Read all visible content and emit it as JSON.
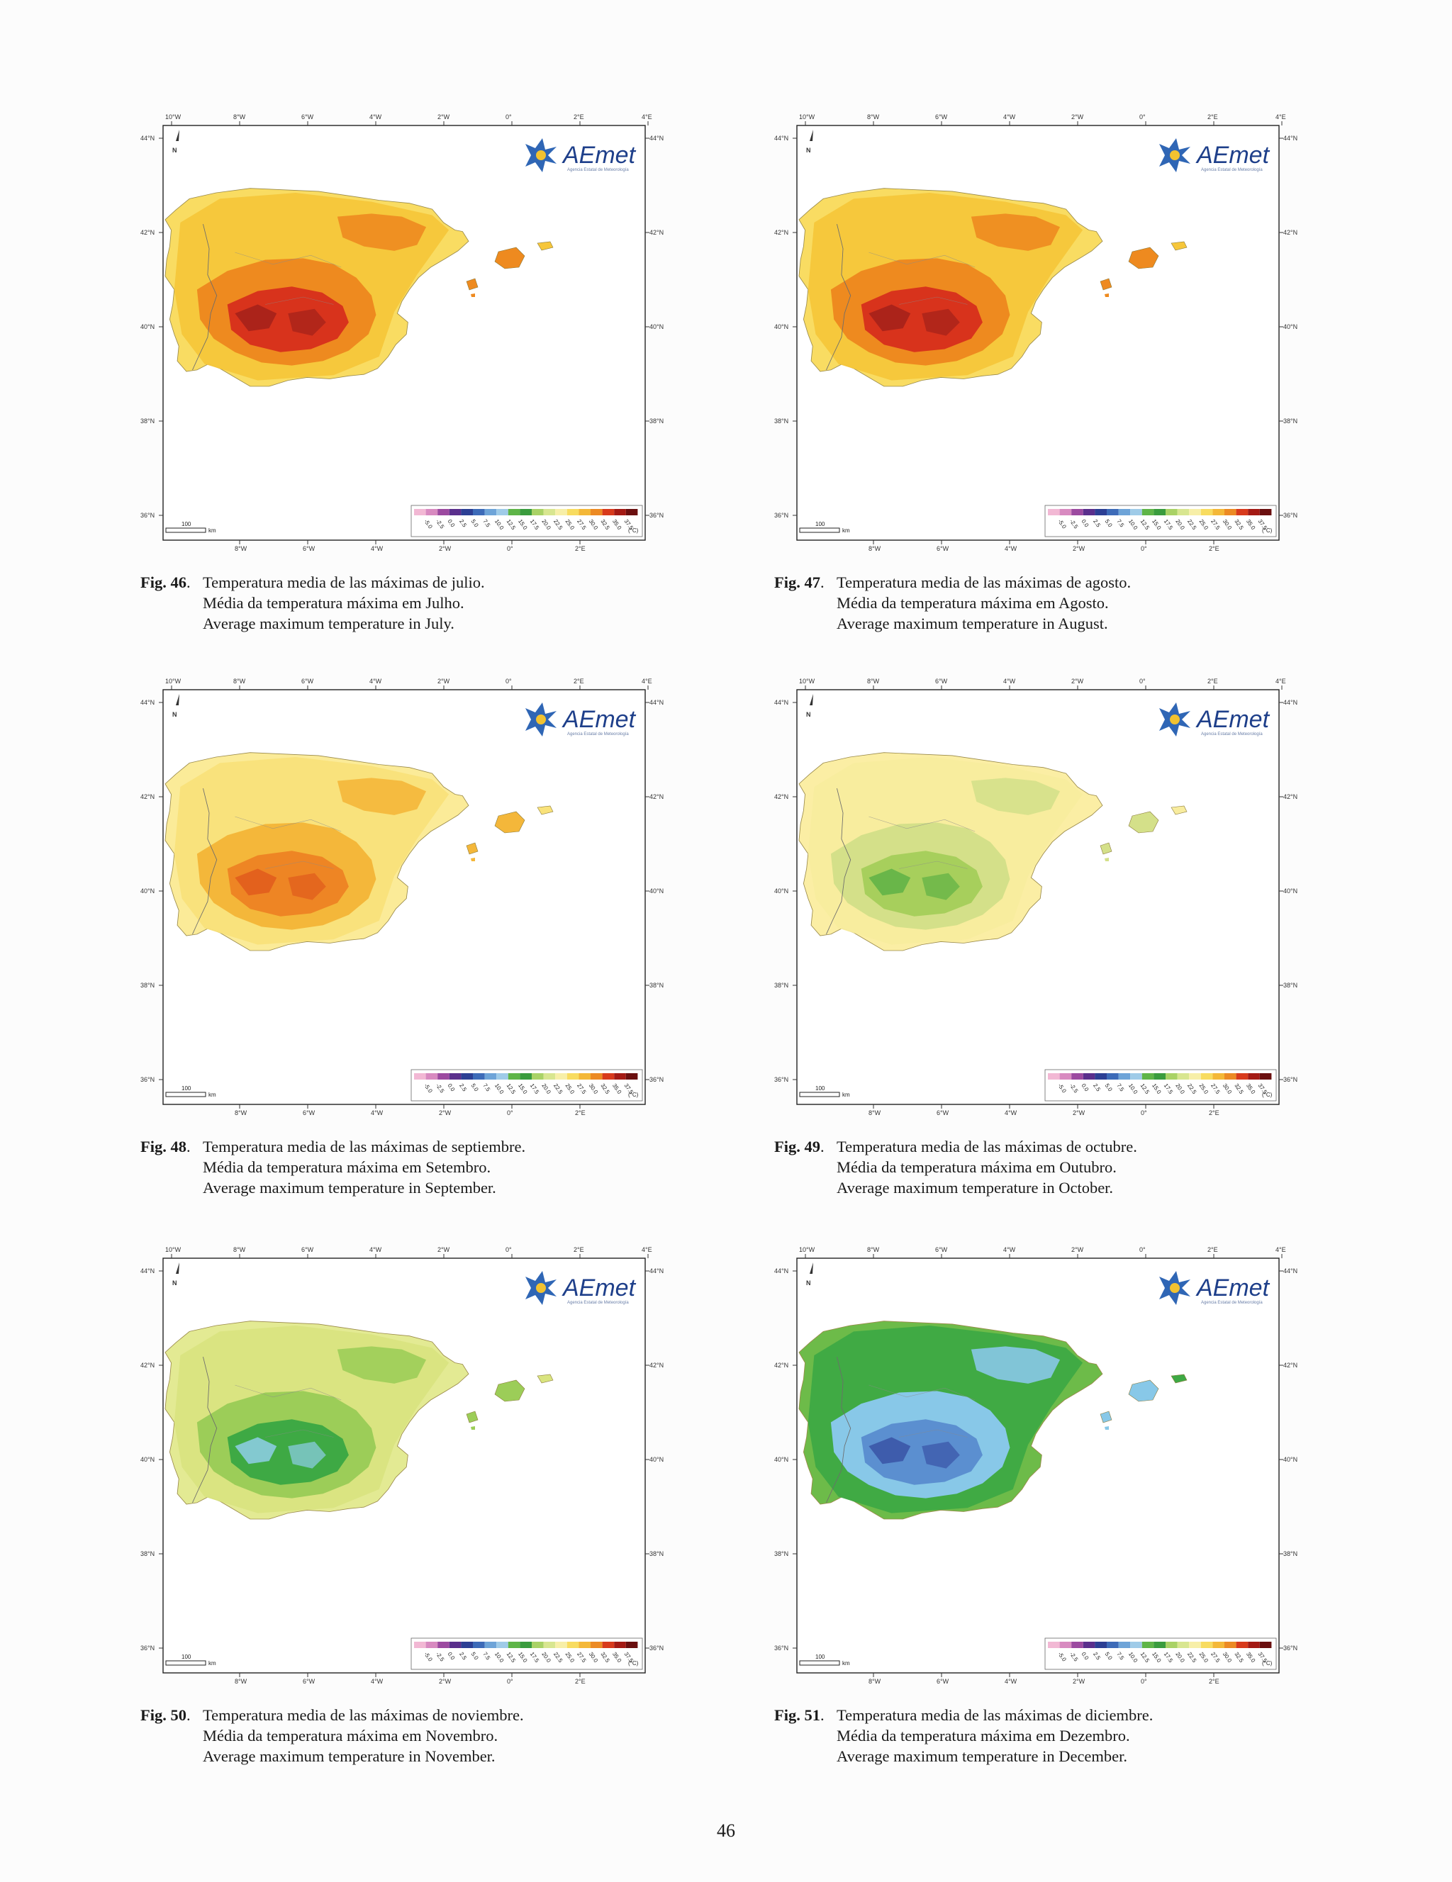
{
  "figures": [
    {
      "num": "Fig. 46",
      "sep": ".",
      "lines": [
        "Temperatura media de las máximas de julio.",
        "Média da temperatura máxima em Julho.",
        "Average maximum temperature in July."
      ],
      "palette": {
        "base": "#f6c63a",
        "mid": "#ee8a1f",
        "hot": "#d8331c",
        "extra": "#a3211a",
        "coast": "#f9dc62"
      }
    },
    {
      "num": "Fig. 47",
      "sep": ".",
      "lines": [
        "Temperatura media de las máximas de agosto.",
        "Média da temperatura máxima em Agosto.",
        "Average maximum temperature in August."
      ],
      "palette": {
        "base": "#f6c63a",
        "mid": "#ee8a1f",
        "hot": "#d8331c",
        "extra": "#a3211a",
        "coast": "#f9dc62"
      }
    },
    {
      "num": "Fig. 48",
      "sep": ".",
      "lines": [
        "Temperatura media de las máximas de septiembre.",
        "Média da temperatura máxima em Setembro.",
        "Average maximum temperature in September."
      ],
      "palette": {
        "base": "#f9e27a",
        "mid": "#f4b73a",
        "hot": "#ee8524",
        "extra": "#e05a1c",
        "coast": "#fbeb98"
      }
    },
    {
      "num": "Fig. 49",
      "sep": ".",
      "lines": [
        "Temperatura media de las máximas de octubre.",
        "Média da temperatura máxima em Outubro.",
        "Average maximum temperature in October."
      ],
      "palette": {
        "base": "#f8ec9e",
        "mid": "#d4e089",
        "hot": "#a7cf5c",
        "extra": "#5eb145",
        "coast": "#fbeea4"
      }
    },
    {
      "num": "Fig. 50",
      "sep": ".",
      "lines": [
        "Temperatura media de las máximas de noviembre.",
        "Média da temperatura máxima em Novembro.",
        "Average maximum temperature in November."
      ],
      "palette": {
        "base": "#d9e47f",
        "mid": "#9ccd58",
        "hot": "#3ea944",
        "extra": "#8fcfe9",
        "coast": "#e3ea93"
      }
    },
    {
      "num": "Fig. 51",
      "sep": ".",
      "lines": [
        "Temperatura media de las máximas de diciembre.",
        "Média da temperatura máxima em Dezembro.",
        "Average maximum temperature in December."
      ],
      "palette": {
        "base": "#3ea944",
        "mid": "#88c8e8",
        "hot": "#5b8fd0",
        "extra": "#3953a6",
        "coast": "#6dbb49"
      }
    }
  ],
  "map_labels": {
    "top_ticks": [
      "10°W",
      "8°W",
      "6°W",
      "4°W",
      "2°W",
      "0°",
      "2°E",
      "4°E"
    ],
    "bottom_ticks": [
      "8°W",
      "6°W",
      "4°W",
      "2°W",
      "0°",
      "2°E"
    ],
    "left_ticks": [
      "44°N",
      "42°N",
      "40°N",
      "38°N",
      "36°N"
    ],
    "right_ticks": [
      "44°N",
      "42°N",
      "40°N",
      "38°N",
      "36°N"
    ],
    "north": "N",
    "scale_value": "100",
    "scale_unit": "km",
    "logo_text": "AEmet",
    "logo_sub": "Agencia Estatal de Meteorología",
    "legend_values": [
      "-5.0",
      "-2.5",
      "0.0",
      "2.5",
      "5.0",
      "7.5",
      "10.0",
      "12.5",
      "15.0",
      "17.5",
      "20.0",
      "22.5",
      "25.0",
      "27.5",
      "30.0",
      "32.5",
      "35.0",
      "37.5"
    ],
    "legend_unit": "(°C)",
    "legend_colors": [
      "#f2b8d4",
      "#d88ac0",
      "#9c4aa0",
      "#5a2f8c",
      "#2c3f94",
      "#3d6bb8",
      "#6ea4d8",
      "#9fcbe8",
      "#5fb548",
      "#3a9c3e",
      "#a9d266",
      "#d8e690",
      "#f7efa8",
      "#f8dc60",
      "#f4b838",
      "#ec8a24",
      "#d83a1c",
      "#a41a14",
      "#6a0f0f"
    ]
  },
  "page_number": "46"
}
